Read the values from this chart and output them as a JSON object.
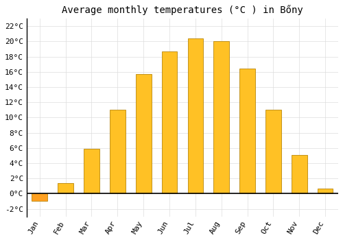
{
  "title": "Average monthly temperatures (°C ) in Bőny",
  "months": [
    "Jan",
    "Feb",
    "Mar",
    "Apr",
    "May",
    "Jun",
    "Jul",
    "Aug",
    "Sep",
    "Oct",
    "Nov",
    "Dec"
  ],
  "values": [
    -1.0,
    1.4,
    5.9,
    11.0,
    15.7,
    18.7,
    20.4,
    20.0,
    16.4,
    11.0,
    5.1,
    0.7
  ],
  "bar_color_positive": "#FFC125",
  "bar_color_negative": "#FFA020",
  "bar_edge_color": "#B8860B",
  "background_color": "#FFFFFF",
  "grid_color": "#DDDDDD",
  "zero_line_color": "#000000",
  "ylim": [
    -3,
    23
  ],
  "yticks": [
    -2,
    0,
    2,
    4,
    6,
    8,
    10,
    12,
    14,
    16,
    18,
    20,
    22
  ],
  "title_fontsize": 10,
  "tick_fontsize": 8,
  "figsize": [
    5.0,
    3.5
  ],
  "dpi": 100
}
